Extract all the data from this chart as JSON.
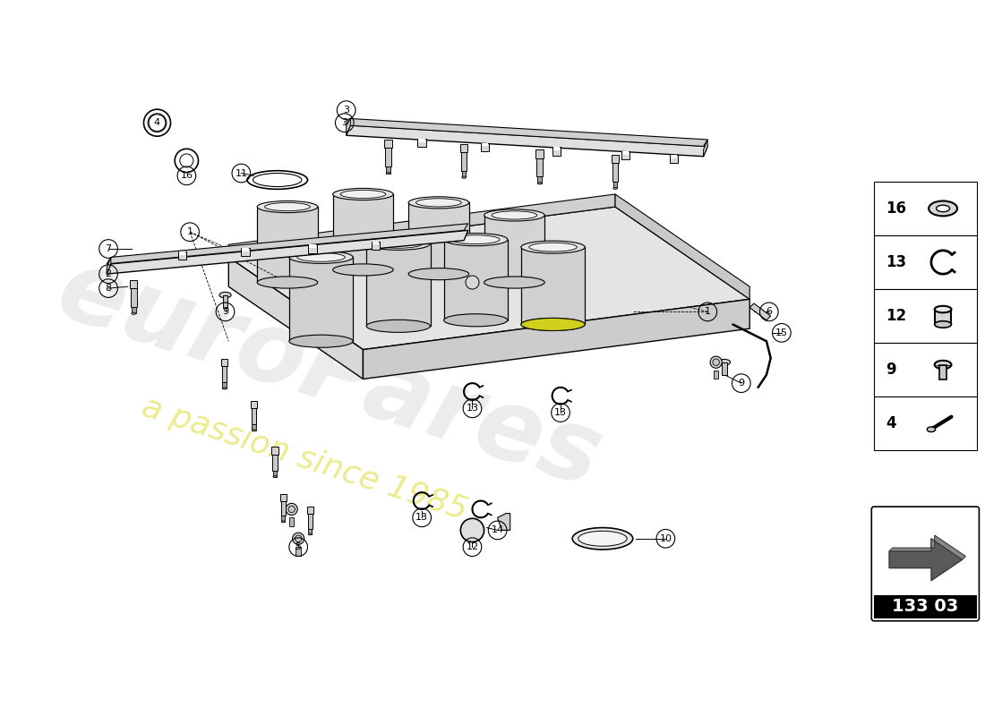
{
  "background_color": "#ffffff",
  "watermark_text1": "euroPares",
  "watermark_text2": "a passion since 1985",
  "part_number": "133 03",
  "line_color": "#000000",
  "accent_yellow": "#d4d400",
  "sidebar_items": [
    {
      "number": "16",
      "shape": "washer"
    },
    {
      "number": "13",
      "shape": "clip"
    },
    {
      "number": "12",
      "shape": "cylinder"
    },
    {
      "number": "9",
      "shape": "bolt_top"
    },
    {
      "number": "4",
      "shape": "screw"
    }
  ]
}
